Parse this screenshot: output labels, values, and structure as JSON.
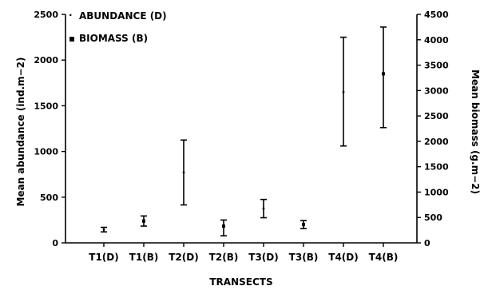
{
  "chart_data": {
    "type": "errorbar",
    "title": "",
    "xlabel": "TRANSECTS",
    "ylabel_left": "Mean abundance (ind.m−2)",
    "ylabel_right": "Mean biomass (g.m−2)",
    "ylim_left": [
      0,
      2500
    ],
    "ylim_right": [
      0,
      4500
    ],
    "yticks_left": [
      "0",
      "500",
      "1000",
      "1500",
      "2000",
      "2500"
    ],
    "yticks_right": [
      "0",
      "500",
      "1000",
      "1500",
      "2000",
      "2500",
      "3000",
      "3500",
      "4000",
      "4500"
    ],
    "legend_position": "top-left",
    "categories": [
      "T1(D)",
      "T1(B)",
      "T2(D)",
      "T2(B)",
      "T3(D)",
      "T3(B)",
      "T4(D)",
      "T4(B)"
    ],
    "series": [
      {
        "name": "ABUNDANCE (D)",
        "axis": "left",
        "marker": "·",
        "points": [
          {
            "category": "T1(D)",
            "mean": 145,
            "low": 120,
            "high": 170
          },
          {
            "category": "T2(D)",
            "mean": 770,
            "low": 415,
            "high": 1125
          },
          {
            "category": "T3(D)",
            "mean": 375,
            "low": 275,
            "high": 475
          },
          {
            "category": "T4(D)",
            "mean": 1650,
            "low": 1060,
            "high": 2250
          }
        ]
      },
      {
        "name": "BIOMASS (B)",
        "axis": "right",
        "marker": "▪",
        "points": [
          {
            "category": "T1(B)",
            "mean": 430,
            "low": 330,
            "high": 530
          },
          {
            "category": "T2(B)",
            "mean": 330,
            "low": 140,
            "high": 450
          },
          {
            "category": "T3(B)",
            "mean": 360,
            "low": 280,
            "high": 440
          },
          {
            "category": "T4(B)",
            "mean": 3330,
            "low": 2270,
            "high": 4250
          }
        ]
      }
    ]
  }
}
